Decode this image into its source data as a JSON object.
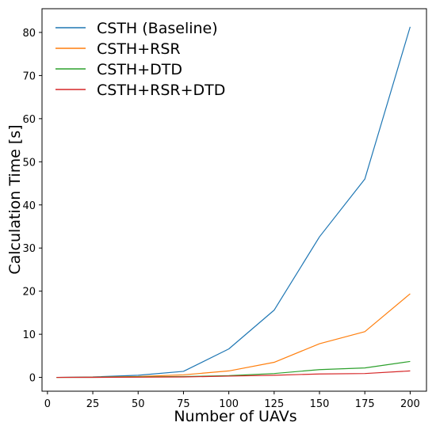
{
  "chart_data": {
    "type": "line",
    "title": "",
    "xlabel": "Number of UAVs",
    "ylabel": "Calculation Time [s]",
    "xlim": [
      -3,
      209
    ],
    "ylim": [
      -3.2,
      85.5
    ],
    "xticks": [
      0,
      25,
      50,
      75,
      100,
      125,
      150,
      175,
      200
    ],
    "yticks": [
      0,
      10,
      20,
      30,
      40,
      50,
      60,
      70,
      80
    ],
    "grid": false,
    "legend_position": "top-left",
    "x": [
      5,
      25,
      50,
      75,
      100,
      125,
      150,
      175,
      200
    ],
    "series": [
      {
        "name": "CSTH (Baseline)",
        "color": "#1f77b4",
        "values": [
          0.0,
          0.1,
          0.5,
          1.4,
          6.6,
          15.6,
          32.6,
          46.0,
          81.3
        ]
      },
      {
        "name": "CSTH+RSR",
        "color": "#ff7f0e",
        "values": [
          0.0,
          0.05,
          0.2,
          0.6,
          1.5,
          3.5,
          7.8,
          10.6,
          19.4
        ]
      },
      {
        "name": "CSTH+DTD",
        "color": "#2ca02c",
        "values": [
          0.0,
          0.02,
          0.1,
          0.2,
          0.4,
          0.9,
          1.8,
          2.2,
          3.7
        ]
      },
      {
        "name": "CSTH+RSR+DTD",
        "color": "#d62728",
        "values": [
          0.0,
          0.01,
          0.05,
          0.1,
          0.3,
          0.5,
          0.8,
          0.9,
          1.5
        ]
      }
    ]
  }
}
